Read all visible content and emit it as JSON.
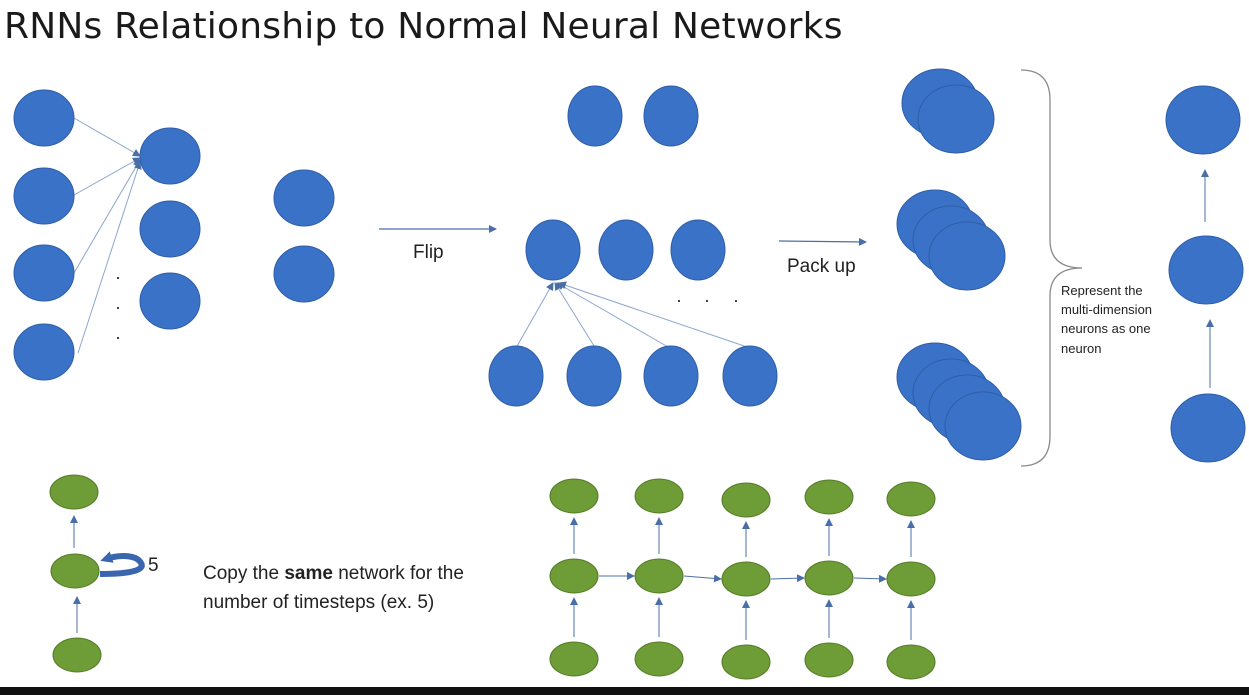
{
  "slide": {
    "title": "RNNs Relationship to Normal Neural Networks"
  },
  "labels": {
    "flip": "Flip",
    "pack_up": "Pack up",
    "represent": [
      "Represent the",
      "multi-dimension",
      "neurons as one",
      "neuron"
    ],
    "loop_count": "5",
    "copy_pre": "Copy the ",
    "copy_bold": "same",
    "copy_post": " network for the",
    "copy_line2": "number of timesteps (ex. 5)",
    "vertical_dots": "·\n·\n·",
    "horizontal_dots": "·   ·   ·"
  },
  "colors": {
    "neuron_blue": "#3a72c8",
    "neuron_blue_stroke": "#2e5ea8",
    "neuron_green": "#6e9c36",
    "neuron_green_stroke": "#557a28",
    "arrow": "#4a6fa8",
    "bracket": "#8a8a8a"
  }
}
